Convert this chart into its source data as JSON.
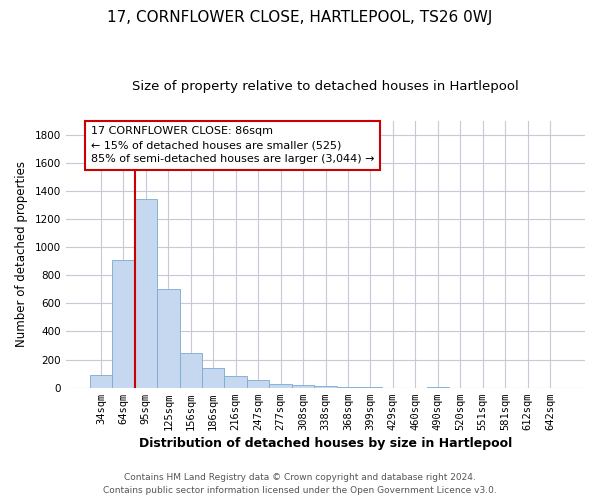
{
  "title": "17, CORNFLOWER CLOSE, HARTLEPOOL, TS26 0WJ",
  "subtitle": "Size of property relative to detached houses in Hartlepool",
  "xlabel": "Distribution of detached houses by size in Hartlepool",
  "ylabel": "Number of detached properties",
  "bar_labels": [
    "34sqm",
    "64sqm",
    "95sqm",
    "125sqm",
    "156sqm",
    "186sqm",
    "216sqm",
    "247sqm",
    "277sqm",
    "308sqm",
    "338sqm",
    "368sqm",
    "399sqm",
    "429sqm",
    "460sqm",
    "490sqm",
    "520sqm",
    "551sqm",
    "581sqm",
    "612sqm",
    "642sqm"
  ],
  "bar_values": [
    90,
    910,
    1340,
    700,
    250,
    140,
    80,
    52,
    25,
    20,
    10,
    5,
    2,
    0,
    0,
    8,
    0,
    0,
    0,
    0,
    0
  ],
  "bar_color": "#c5d8f0",
  "bar_edge_color": "#7aaad0",
  "reference_line_color": "#cc0000",
  "reference_line_x": 1.5,
  "annotation_text": "17 CORNFLOWER CLOSE: 86sqm\n← 15% of detached houses are smaller (525)\n85% of semi-detached houses are larger (3,044) →",
  "annotation_box_color": "#ffffff",
  "annotation_box_edge": "#cc0000",
  "ylim": [
    0,
    1900
  ],
  "yticks": [
    0,
    200,
    400,
    600,
    800,
    1000,
    1200,
    1400,
    1600,
    1800
  ],
  "footer_line1": "Contains HM Land Registry data © Crown copyright and database right 2024.",
  "footer_line2": "Contains public sector information licensed under the Open Government Licence v3.0.",
  "bg_color": "#ffffff",
  "grid_color": "#c8c8d8",
  "title_fontsize": 11,
  "subtitle_fontsize": 9.5,
  "xlabel_fontsize": 9,
  "ylabel_fontsize": 8.5,
  "tick_fontsize": 7.5,
  "footer_fontsize": 6.5,
  "annotation_fontsize": 8
}
